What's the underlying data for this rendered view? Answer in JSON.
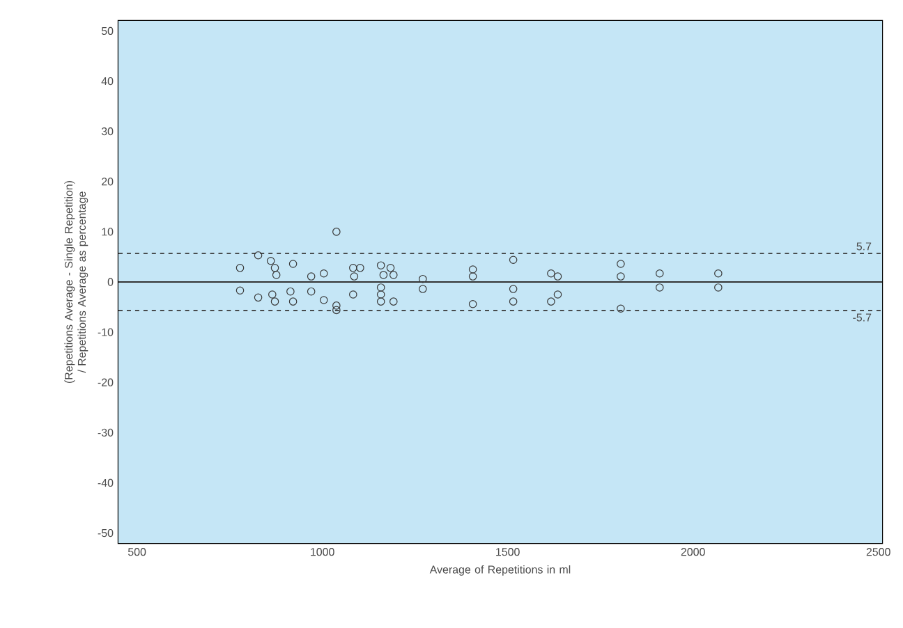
{
  "chart_data": {
    "type": "scatter",
    "xlabel": "Average of Repetitions in ml",
    "ylabel": "(Repetitions Average - Single Repetition) / Repetitions Average as percentage",
    "xlim": [
      450,
      2510
    ],
    "ylim": [
      -52,
      52
    ],
    "xticks": [
      500,
      1000,
      1500,
      2000,
      2500
    ],
    "yticks": [
      -50,
      -40,
      -30,
      -20,
      -10,
      0,
      10,
      20,
      30,
      40,
      50
    ],
    "marker": "circle",
    "series": [
      {
        "color": "#3a3a3a",
        "x": [
          778,
          778,
          827,
          861,
          872,
          876,
          921,
          827,
          865,
          872,
          914,
          921,
          970,
          1004,
          970,
          1004,
          1038,
          1038,
          1038,
          1083,
          1102,
          1086,
          1083,
          1158,
          1184,
          1165,
          1192,
          1158,
          1158,
          1158,
          1192,
          1271,
          1271,
          1406,
          1406,
          1406,
          1515,
          1515,
          1515,
          1617,
          1635,
          1635,
          1617,
          1805,
          1805,
          1805,
          1910,
          1910,
          2068,
          2068
        ],
        "values": [
          2.8,
          -1.7,
          5.3,
          4.2,
          2.8,
          1.4,
          3.6,
          -3.1,
          -2.5,
          -3.9,
          -1.9,
          -3.9,
          1.1,
          1.7,
          -1.9,
          -3.6,
          10.0,
          -4.7,
          -5.6,
          2.8,
          2.8,
          1.1,
          -2.5,
          3.3,
          2.8,
          1.4,
          1.4,
          -1.1,
          -2.5,
          -3.9,
          -3.9,
          0.6,
          -1.4,
          2.5,
          1.1,
          -4.4,
          4.4,
          -1.4,
          -3.9,
          1.7,
          1.1,
          -2.5,
          -3.9,
          3.6,
          1.1,
          -5.3,
          1.7,
          -1.1,
          1.7,
          -1.1
        ]
      }
    ],
    "ref_lines": [
      {
        "axis": "y",
        "value": 0,
        "line_style": "solid"
      },
      {
        "axis": "y",
        "value": 5.7,
        "label": "5.7",
        "line_style": "dashed"
      },
      {
        "axis": "y",
        "value": -5.7,
        "label": "-5.7",
        "line_style": "dashed"
      }
    ]
  }
}
